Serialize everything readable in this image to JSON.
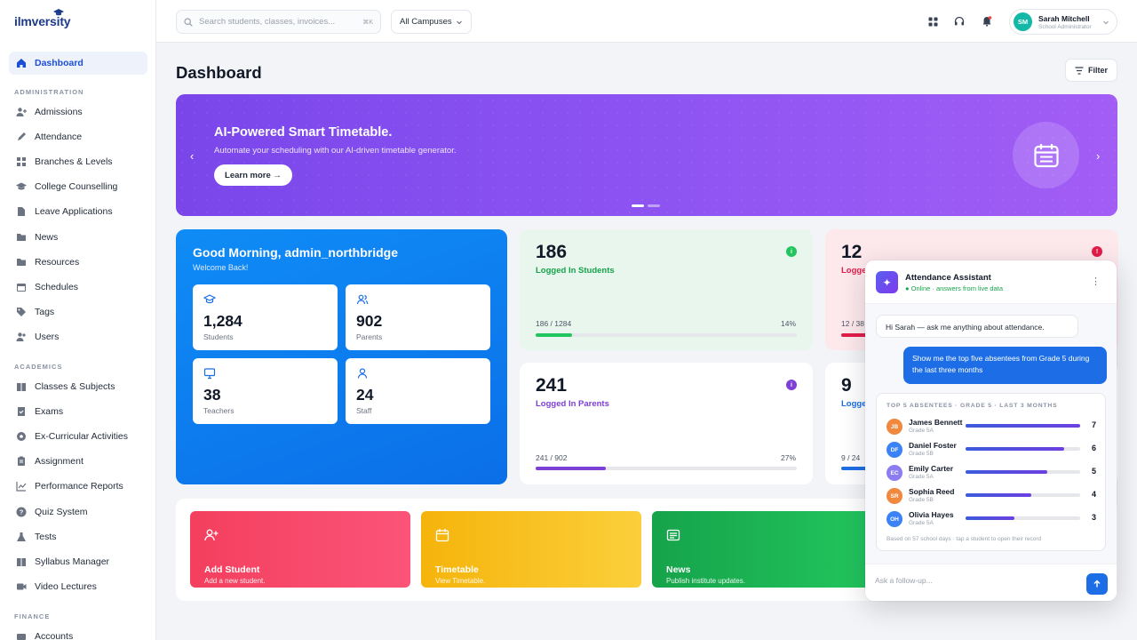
{
  "app": {
    "logo": "ilmversity"
  },
  "sidebar": {
    "dashboard": "Dashboard",
    "section_admin": "ADMINISTRATION",
    "admin_items": [
      "Admissions",
      "Attendance",
      "Branches & Levels",
      "College Counselling",
      "Leave Applications",
      "News",
      "Resources",
      "Schedules",
      "Tags",
      "Users"
    ],
    "section_academics": "ACADEMICS",
    "academic_items": [
      "Classes & Subjects",
      "Exams",
      "Ex-Curricular Activities",
      "Assignment",
      "Performance Reports",
      "Quiz System",
      "Tests",
      "Syllabus Manager",
      "Video Lectures"
    ],
    "section_finance": "FINANCE",
    "finance_items": [
      "Accounts"
    ]
  },
  "topbar": {
    "search_placeholder": "Search students, classes, invoices...",
    "search_shortcut": "⌘K",
    "campus": "All Campuses",
    "user_initials": "SM",
    "user_name": "Sarah Mitchell",
    "user_role": "School Administrator"
  },
  "page": {
    "title": "Dashboard",
    "filter": "Filter"
  },
  "banner": {
    "title": "AI-Powered Smart Timetable.",
    "subtitle": "Automate your scheduling with our AI-driven timetable generator.",
    "cta": "Learn more →"
  },
  "welcome": {
    "title": "Good Morning, admin_northbridge",
    "subtitle": "Welcome Back!",
    "cards": [
      {
        "value": "1,284",
        "label": "Students"
      },
      {
        "value": "902",
        "label": "Parents"
      },
      {
        "value": "38",
        "label": "Teachers"
      },
      {
        "value": "24",
        "label": "Staff"
      }
    ]
  },
  "stats": [
    {
      "value": "186",
      "label": "Logged In Students",
      "ratio": "186 / 1284",
      "pct": "14%",
      "progress": 0.14,
      "color": "#22c55e",
      "bg": "#e8f6ee",
      "label_color": "#16a34a",
      "badge": "i"
    },
    {
      "value": "12",
      "label": "Logged",
      "ratio": "12 / 38",
      "pct": "",
      "progress": 0.32,
      "color": "#e11d48",
      "bg": "#fde9ec",
      "label_color": "#e11d48",
      "badge": "!"
    },
    {
      "value": "241",
      "label": "Logged In Parents",
      "ratio": "241 / 902",
      "pct": "27%",
      "progress": 0.27,
      "color": "#7e3fd6",
      "bg": "#ffffff",
      "label_color": "#7e3fd6",
      "badge": "i"
    },
    {
      "value": "9",
      "label": "Logge",
      "ratio": "9 / 24",
      "pct": "",
      "progress": 0.38,
      "color": "#1d6ee6",
      "bg": "#ffffff",
      "label_color": "#1d6ee6",
      "badge": ""
    }
  ],
  "quick_actions": [
    {
      "title": "Add Student",
      "subtitle": "Add a new student.",
      "icon": "add-user-icon"
    },
    {
      "title": "Timetable",
      "subtitle": "View Timetable.",
      "icon": "calendar-icon"
    },
    {
      "title": "News",
      "subtitle": "Publish institute updates.",
      "icon": "news-icon"
    }
  ],
  "chat": {
    "title": "Attendance Assistant",
    "status": "● Online · answers from live data",
    "greeting": "Hi Sarah — ask me anything about attendance.",
    "user_message": "Show me the top five absentees from Grade 5 during the last three months",
    "card_title": "TOP 5 ABSENTEES · GRADE 5 · LAST 3 MONTHS",
    "rows": [
      {
        "initials": "JB",
        "name": "James Bennett",
        "grade": "Grade 5A",
        "count": 7,
        "color": "#f0883e"
      },
      {
        "initials": "DF",
        "name": "Daniel Foster",
        "grade": "Grade 5B",
        "count": 6,
        "color": "#3b82f6"
      },
      {
        "initials": "EC",
        "name": "Emily Carter",
        "grade": "Grade 5A",
        "count": 5,
        "color": "#8b7cf0"
      },
      {
        "initials": "SR",
        "name": "Sophia Reed",
        "grade": "Grade 5B",
        "count": 4,
        "color": "#f0883e"
      },
      {
        "initials": "OH",
        "name": "Olivia Hayes",
        "grade": "Grade 5A",
        "count": 3,
        "color": "#3b82f6"
      }
    ],
    "max_count": 7,
    "footnote": "Based on 57 school days · tap a student to open their record",
    "input_placeholder": "Ask a follow-up..."
  }
}
